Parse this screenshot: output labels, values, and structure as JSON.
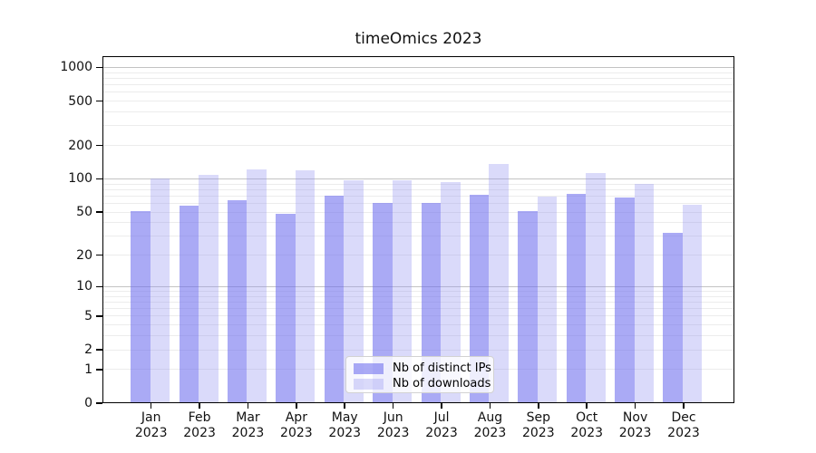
{
  "title": "timeOmics 2023",
  "chart_data": {
    "type": "bar",
    "title": "timeOmics 2023",
    "y_scale": "log1p",
    "grid": true,
    "legend_position": "lower center",
    "xlabel": "",
    "ylabel": "",
    "categories": [
      "Jan",
      "Feb",
      "Mar",
      "Apr",
      "May",
      "Jun",
      "Jul",
      "Aug",
      "Sep",
      "Oct",
      "Nov",
      "Dec"
    ],
    "category_year": "2023",
    "yticks": [
      0,
      1,
      2,
      5,
      10,
      20,
      50,
      100,
      200,
      500,
      1000
    ],
    "ylim": [
      0,
      1250
    ],
    "series": [
      {
        "name": "Nb of distinct IPs",
        "key": "distinct-ips",
        "color": "rgba(110,110,238,0.59)",
        "color_on_white": "#a9a9f4",
        "values": [
          51,
          57,
          64,
          48,
          71,
          61,
          61,
          72,
          51,
          73,
          68,
          32
        ]
      },
      {
        "name": "Nb of downloads",
        "key": "downloads",
        "color": "rgba(150,150,240,0.35)",
        "color_on_white": "#dadaf9",
        "values": [
          100,
          108,
          121,
          120,
          98,
          98,
          94,
          136,
          69,
          112,
          90,
          58
        ]
      }
    ]
  }
}
